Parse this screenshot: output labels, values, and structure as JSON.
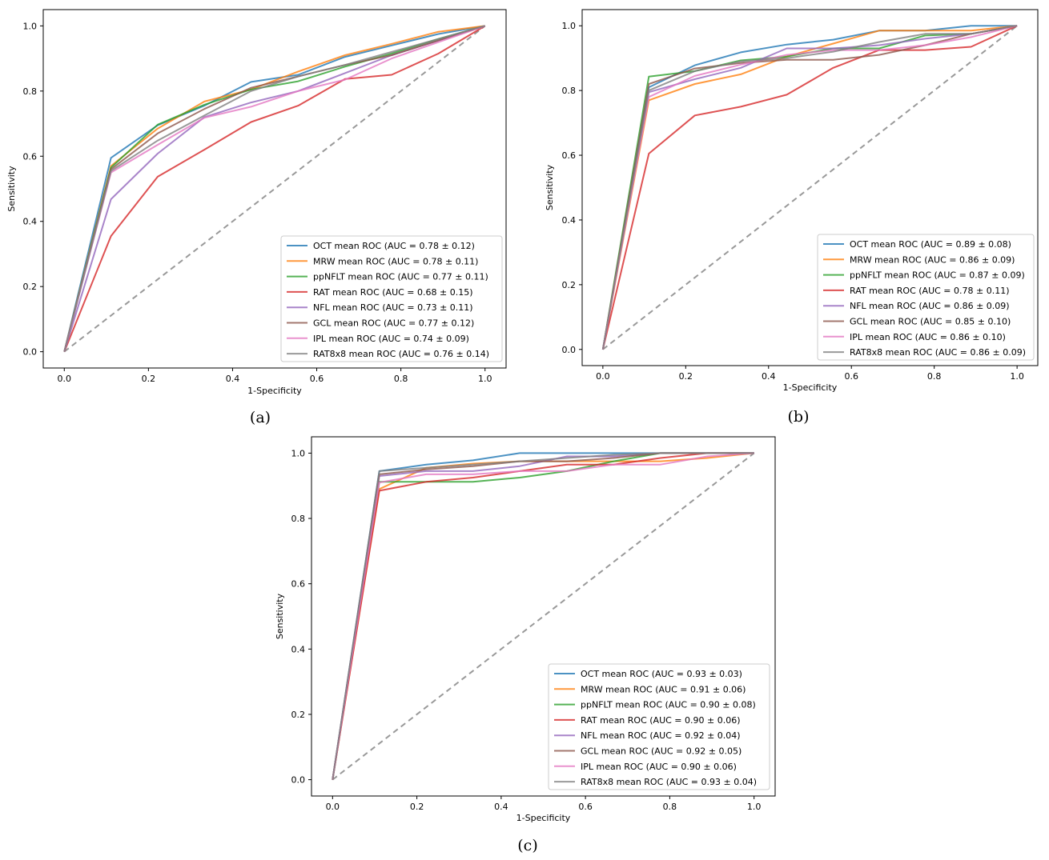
{
  "colors": {
    "OCT": "#1f77b4",
    "MRW": "#ff7f0e",
    "ppNFLT": "#2ca02c",
    "RAT": "#d62728",
    "NFL": "#9467bd",
    "GCL": "#8c564b",
    "IPL": "#e377c2",
    "RAT8x8": "#7f7f7f",
    "chance": "#7f7f7f"
  },
  "chart_data": [
    {
      "type": "line",
      "panel_label": "(a)",
      "xlabel": "1-Specificity",
      "ylabel": "Sensitivity",
      "xlim": [
        -0.05,
        1.05
      ],
      "ylim": [
        -0.05,
        1.05
      ],
      "xticks": [
        "0.0",
        "0.2",
        "0.4",
        "0.6",
        "0.8",
        "1.0"
      ],
      "yticks": [
        "0.0",
        "0.2",
        "0.4",
        "0.6",
        "0.8",
        "1.0"
      ],
      "legend_position": "lower right",
      "grid": false,
      "chance_line": true,
      "series": [
        {
          "key": "OCT",
          "name": "OCT mean ROC (AUC = 0.78 ± 0.12)",
          "x": [
            0,
            0.111,
            0.222,
            0.333,
            0.444,
            0.556,
            0.667,
            0.778,
            0.889,
            1.0
          ],
          "y": [
            0,
            0.595,
            0.695,
            0.755,
            0.828,
            0.85,
            0.905,
            0.94,
            0.975,
            1.0
          ]
        },
        {
          "key": "MRW",
          "name": "MRW mean ROC (AUC = 0.78 ± 0.11)",
          "x": [
            0,
            0.111,
            0.222,
            0.333,
            0.444,
            0.556,
            0.667,
            0.778,
            0.889,
            1.0
          ],
          "y": [
            0,
            0.57,
            0.685,
            0.768,
            0.805,
            0.86,
            0.91,
            0.945,
            0.982,
            1.0
          ]
        },
        {
          "key": "ppNFLT",
          "name": "ppNFLT mean ROC (AUC = 0.77 ± 0.11)",
          "x": [
            0,
            0.111,
            0.222,
            0.333,
            0.444,
            0.556,
            0.667,
            0.778,
            0.889,
            1.0
          ],
          "y": [
            0,
            0.565,
            0.697,
            0.758,
            0.805,
            0.83,
            0.875,
            0.915,
            0.96,
            1.0
          ]
        },
        {
          "key": "RAT",
          "name": "RAT mean ROC (AUC = 0.68 ± 0.15)",
          "x": [
            0,
            0.111,
            0.222,
            0.333,
            0.444,
            0.556,
            0.667,
            0.778,
            0.889,
            1.0
          ],
          "y": [
            0,
            0.355,
            0.537,
            0.62,
            0.705,
            0.755,
            0.837,
            0.85,
            0.915,
            1.0
          ]
        },
        {
          "key": "NFL",
          "name": "NFL mean ROC (AUC = 0.73 ± 0.11)",
          "x": [
            0,
            0.111,
            0.222,
            0.333,
            0.444,
            0.556,
            0.667,
            0.778,
            0.889,
            1.0
          ],
          "y": [
            0,
            0.468,
            0.608,
            0.72,
            0.765,
            0.8,
            0.855,
            0.91,
            0.955,
            1.0
          ]
        },
        {
          "key": "GCL",
          "name": "GCL mean ROC (AUC = 0.77 ± 0.12)",
          "x": [
            0,
            0.111,
            0.222,
            0.333,
            0.444,
            0.556,
            0.667,
            0.778,
            0.889,
            1.0
          ],
          "y": [
            0,
            0.56,
            0.67,
            0.745,
            0.81,
            0.845,
            0.88,
            0.91,
            0.955,
            1.0
          ]
        },
        {
          "key": "IPL",
          "name": "IPL mean ROC (AUC = 0.74 ± 0.09)",
          "x": [
            0,
            0.111,
            0.222,
            0.333,
            0.444,
            0.556,
            0.667,
            0.778,
            0.889,
            1.0
          ],
          "y": [
            0,
            0.55,
            0.635,
            0.718,
            0.752,
            0.8,
            0.835,
            0.9,
            0.95,
            1.0
          ]
        },
        {
          "key": "RAT8x8",
          "name": "RAT8x8 mean ROC (AUC = 0.76 ± 0.14)",
          "x": [
            0,
            0.111,
            0.222,
            0.333,
            0.444,
            0.556,
            0.667,
            0.778,
            0.889,
            1.0
          ],
          "y": [
            0,
            0.555,
            0.648,
            0.725,
            0.8,
            0.845,
            0.88,
            0.92,
            0.96,
            1.0
          ]
        }
      ]
    },
    {
      "type": "line",
      "panel_label": "(b)",
      "xlabel": "1-Specificity",
      "ylabel": "Sensitivity",
      "xlim": [
        -0.05,
        1.05
      ],
      "ylim": [
        -0.05,
        1.05
      ],
      "xticks": [
        "0.0",
        "0.2",
        "0.4",
        "0.6",
        "0.8",
        "1.0"
      ],
      "yticks": [
        "0.0",
        "0.2",
        "0.4",
        "0.6",
        "0.8",
        "1.0"
      ],
      "legend_position": "lower right",
      "grid": false,
      "chance_line": true,
      "series": [
        {
          "key": "OCT",
          "name": "OCT mean ROC (AUC = 0.89 ± 0.08)",
          "x": [
            0,
            0.111,
            0.222,
            0.333,
            0.444,
            0.556,
            0.667,
            0.778,
            0.889,
            1.0
          ],
          "y": [
            0,
            0.81,
            0.878,
            0.918,
            0.942,
            0.957,
            0.985,
            0.985,
            1.0,
            1.0
          ]
        },
        {
          "key": "MRW",
          "name": "MRW mean ROC (AUC = 0.86 ± 0.09)",
          "x": [
            0,
            0.111,
            0.222,
            0.333,
            0.444,
            0.556,
            0.667,
            0.778,
            0.889,
            1.0
          ],
          "y": [
            0,
            0.77,
            0.82,
            0.85,
            0.905,
            0.945,
            0.985,
            0.985,
            0.985,
            1.0
          ]
        },
        {
          "key": "ppNFLT",
          "name": "ppNFLT mean ROC (AUC = 0.87 ± 0.09)",
          "x": [
            0,
            0.111,
            0.222,
            0.333,
            0.444,
            0.556,
            0.667,
            0.778,
            0.889,
            1.0
          ],
          "y": [
            0,
            0.843,
            0.86,
            0.893,
            0.905,
            0.93,
            0.93,
            0.97,
            0.975,
            1.0
          ]
        },
        {
          "key": "RAT",
          "name": "RAT mean ROC (AUC = 0.78 ± 0.11)",
          "x": [
            0,
            0.111,
            0.222,
            0.333,
            0.444,
            0.556,
            0.667,
            0.778,
            0.889,
            1.0
          ],
          "y": [
            0,
            0.605,
            0.723,
            0.75,
            0.787,
            0.87,
            0.925,
            0.925,
            0.935,
            1.0
          ]
        },
        {
          "key": "NFL",
          "name": "NFL mean ROC (AUC = 0.86 ± 0.09)",
          "x": [
            0,
            0.111,
            0.222,
            0.333,
            0.444,
            0.556,
            0.667,
            0.778,
            0.889,
            1.0
          ],
          "y": [
            0,
            0.795,
            0.835,
            0.87,
            0.93,
            0.93,
            0.94,
            0.96,
            0.975,
            1.0
          ]
        },
        {
          "key": "GCL",
          "name": "GCL mean ROC (AUC = 0.85 ± 0.10)",
          "x": [
            0,
            0.111,
            0.222,
            0.333,
            0.444,
            0.556,
            0.667,
            0.778,
            0.889,
            1.0
          ],
          "y": [
            0,
            0.82,
            0.868,
            0.885,
            0.895,
            0.895,
            0.91,
            0.94,
            0.975,
            1.0
          ]
        },
        {
          "key": "IPL",
          "name": "IPL mean ROC (AUC = 0.86 ± 0.10)",
          "x": [
            0,
            0.111,
            0.222,
            0.333,
            0.444,
            0.556,
            0.667,
            0.778,
            0.889,
            1.0
          ],
          "y": [
            0,
            0.78,
            0.845,
            0.88,
            0.91,
            0.925,
            0.925,
            0.94,
            0.965,
            1.0
          ]
        },
        {
          "key": "RAT8x8",
          "name": "RAT8x8 mean ROC (AUC = 0.86 ± 0.09)",
          "x": [
            0,
            0.111,
            0.222,
            0.333,
            0.444,
            0.556,
            0.667,
            0.778,
            0.889,
            1.0
          ],
          "y": [
            0,
            0.8,
            0.86,
            0.89,
            0.9,
            0.92,
            0.95,
            0.975,
            0.975,
            1.0
          ]
        }
      ]
    },
    {
      "type": "line",
      "panel_label": "(c)",
      "xlabel": "1-Specificity",
      "ylabel": "Sensitivity",
      "xlim": [
        -0.05,
        1.05
      ],
      "ylim": [
        -0.05,
        1.05
      ],
      "xticks": [
        "0.0",
        "0.2",
        "0.4",
        "0.6",
        "0.8",
        "1.0"
      ],
      "yticks": [
        "0.0",
        "0.2",
        "0.4",
        "0.6",
        "0.8",
        "1.0"
      ],
      "legend_position": "lower right",
      "grid": false,
      "chance_line": true,
      "series": [
        {
          "key": "OCT",
          "name": "OCT mean ROC (AUC = 0.93 ± 0.03)",
          "x": [
            0,
            0.111,
            0.222,
            0.333,
            0.444,
            0.556,
            0.667,
            0.778,
            0.889,
            1.0
          ],
          "y": [
            0,
            0.945,
            0.965,
            0.978,
            1.0,
            1.0,
            1.0,
            1.0,
            1.0,
            1.0
          ]
        },
        {
          "key": "MRW",
          "name": "MRW mean ROC (AUC = 0.91 ± 0.06)",
          "x": [
            0,
            0.111,
            0.222,
            0.333,
            0.444,
            0.556,
            0.667,
            0.778,
            0.889,
            1.0
          ],
          "y": [
            0,
            0.89,
            0.955,
            0.968,
            0.975,
            0.975,
            0.975,
            0.975,
            0.985,
            1.0
          ]
        },
        {
          "key": "ppNFLT",
          "name": "ppNFLT mean ROC (AUC = 0.90 ± 0.08)",
          "x": [
            0,
            0.111,
            0.222,
            0.333,
            0.444,
            0.556,
            0.667,
            0.778,
            0.889,
            1.0
          ],
          "y": [
            0,
            0.912,
            0.912,
            0.912,
            0.925,
            0.945,
            0.975,
            1.0,
            1.0,
            1.0
          ]
        },
        {
          "key": "RAT",
          "name": "RAT mean ROC (AUC = 0.90 ± 0.06)",
          "x": [
            0,
            0.111,
            0.222,
            0.333,
            0.444,
            0.556,
            0.667,
            0.778,
            0.889,
            1.0
          ],
          "y": [
            0,
            0.885,
            0.912,
            0.925,
            0.945,
            0.965,
            0.965,
            0.985,
            1.0,
            1.0
          ]
        },
        {
          "key": "NFL",
          "name": "NFL mean ROC (AUC = 0.92 ± 0.04)",
          "x": [
            0,
            0.111,
            0.222,
            0.333,
            0.444,
            0.556,
            0.667,
            0.778,
            0.889,
            1.0
          ],
          "y": [
            0,
            0.93,
            0.945,
            0.945,
            0.96,
            0.99,
            0.99,
            1.0,
            1.0,
            1.0
          ]
        },
        {
          "key": "GCL",
          "name": "GCL mean ROC (AUC = 0.92 ± 0.05)",
          "x": [
            0,
            0.111,
            0.222,
            0.333,
            0.444,
            0.556,
            0.667,
            0.778,
            0.889,
            1.0
          ],
          "y": [
            0,
            0.935,
            0.95,
            0.96,
            0.975,
            0.975,
            0.985,
            1.0,
            1.0,
            1.0
          ]
        },
        {
          "key": "IPL",
          "name": "IPL mean ROC (AUC = 0.90 ± 0.06)",
          "x": [
            0,
            0.111,
            0.222,
            0.333,
            0.444,
            0.556,
            0.667,
            0.778,
            0.889,
            1.0
          ],
          "y": [
            0,
            0.91,
            0.935,
            0.935,
            0.945,
            0.945,
            0.965,
            0.965,
            0.99,
            1.0
          ]
        },
        {
          "key": "RAT8x8",
          "name": "RAT8x8 mean ROC (AUC = 0.93 ± 0.04)",
          "x": [
            0,
            0.111,
            0.222,
            0.333,
            0.444,
            0.556,
            0.667,
            0.778,
            0.889,
            1.0
          ],
          "y": [
            0,
            0.945,
            0.955,
            0.965,
            0.975,
            0.985,
            0.995,
            1.0,
            1.0,
            1.0
          ]
        }
      ]
    }
  ]
}
